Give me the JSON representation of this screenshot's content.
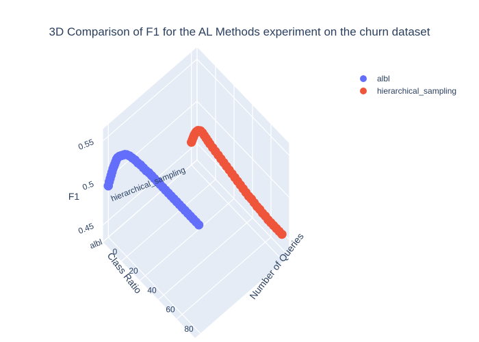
{
  "chart_data": {
    "type": "scatter3d",
    "title": "3D Comparison of F1 for the AL Methods experiment on the churn dataset",
    "x_axis": {
      "title": "Number of Queries",
      "ticks": [
        0,
        20,
        40,
        60,
        80
      ]
    },
    "y_axis": {
      "title": "Class Ratio",
      "ticks": [
        "albl",
        "hierarchical_sampling"
      ]
    },
    "z_axis": {
      "title": "F1",
      "ticks": [
        0.45,
        0.5,
        0.55
      ]
    },
    "legend_position": "top-right",
    "grid": true,
    "series": [
      {
        "name": "albl",
        "color": "#636efa",
        "category": "albl",
        "points": [
          [
            0,
            0.491
          ],
          [
            1,
            0.497
          ],
          [
            2,
            0.502
          ],
          [
            3,
            0.507
          ],
          [
            4,
            0.512
          ],
          [
            5,
            0.517
          ],
          [
            6,
            0.521
          ],
          [
            7,
            0.525
          ],
          [
            8,
            0.529
          ],
          [
            9,
            0.533
          ],
          [
            10,
            0.536
          ],
          [
            12,
            0.54
          ],
          [
            14,
            0.543
          ],
          [
            16,
            0.546
          ],
          [
            18,
            0.549
          ],
          [
            20,
            0.551
          ],
          [
            23,
            0.553
          ],
          [
            26,
            0.554
          ],
          [
            29,
            0.555
          ],
          [
            32,
            0.555
          ],
          [
            35,
            0.556
          ],
          [
            38,
            0.556
          ],
          [
            41,
            0.556
          ],
          [
            44,
            0.557
          ],
          [
            47,
            0.557
          ],
          [
            50,
            0.557
          ],
          [
            53,
            0.557
          ],
          [
            56,
            0.557
          ],
          [
            59,
            0.557
          ],
          [
            62,
            0.557
          ],
          [
            65,
            0.557
          ],
          [
            68,
            0.557
          ],
          [
            71,
            0.557
          ],
          [
            74,
            0.557
          ],
          [
            77,
            0.557
          ],
          [
            80,
            0.557
          ],
          [
            83,
            0.557
          ],
          [
            86,
            0.557
          ],
          [
            89,
            0.557
          ],
          [
            92,
            0.557
          ],
          [
            95,
            0.557
          ],
          [
            98,
            0.557
          ]
        ]
      },
      {
        "name": "hierarchical_sampling",
        "color": "#ef553b",
        "category": "hierarchical_sampling",
        "points": [
          [
            0,
            0.457
          ],
          [
            1,
            0.461
          ],
          [
            2,
            0.465
          ],
          [
            3,
            0.469
          ],
          [
            4,
            0.472
          ],
          [
            5,
            0.475
          ],
          [
            6,
            0.477
          ],
          [
            7,
            0.479
          ],
          [
            8,
            0.48
          ],
          [
            9,
            0.481
          ],
          [
            10,
            0.482
          ],
          [
            12,
            0.482
          ],
          [
            14,
            0.481
          ],
          [
            16,
            0.48
          ],
          [
            18,
            0.479
          ],
          [
            20,
            0.478
          ],
          [
            23,
            0.477
          ],
          [
            26,
            0.476
          ],
          [
            29,
            0.475
          ],
          [
            32,
            0.474
          ],
          [
            35,
            0.473
          ],
          [
            38,
            0.472
          ],
          [
            41,
            0.471
          ],
          [
            44,
            0.47
          ],
          [
            47,
            0.469
          ],
          [
            50,
            0.468
          ],
          [
            53,
            0.467
          ],
          [
            56,
            0.466
          ],
          [
            59,
            0.465
          ],
          [
            62,
            0.464
          ],
          [
            65,
            0.464
          ],
          [
            68,
            0.463
          ],
          [
            71,
            0.462
          ],
          [
            74,
            0.462
          ],
          [
            77,
            0.461
          ],
          [
            80,
            0.461
          ],
          [
            83,
            0.46
          ],
          [
            86,
            0.46
          ],
          [
            89,
            0.46
          ],
          [
            92,
            0.46
          ],
          [
            95,
            0.46
          ],
          [
            98,
            0.46
          ]
        ]
      }
    ]
  }
}
